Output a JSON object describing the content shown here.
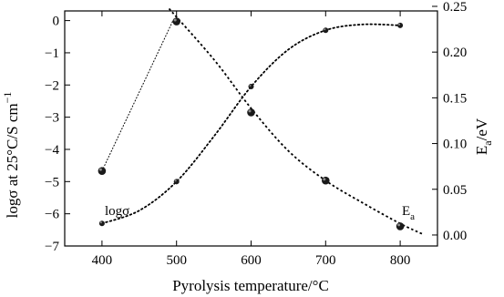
{
  "chart_data": {
    "type": "scatter",
    "title": "",
    "xlabel": "Pyrolysis temperature/°C",
    "ylabel_left": "logσ at 25°C/S cm",
    "ylabel_left_superscript": "−1",
    "ylabel_right_main": "E",
    "ylabel_right_sub": "a",
    "ylabel_right_unit": "/eV",
    "xlim": [
      350,
      850
    ],
    "ylim_left": [
      -7,
      0.3
    ],
    "ylim_right": [
      -0.012,
      0.245
    ],
    "x_ticks": [
      400,
      500,
      600,
      700,
      800
    ],
    "x_tick_labels": [
      "400",
      "500",
      "600",
      "700",
      "800"
    ],
    "y_left_ticks": [
      0,
      -1,
      -2,
      -3,
      -4,
      -5,
      -6,
      -7
    ],
    "y_left_tick_labels": [
      "0",
      "−1",
      "−2",
      "−3",
      "−4",
      "−5",
      "−6",
      "−7"
    ],
    "y_right_ticks": [
      0.0,
      0.05,
      0.1,
      0.15,
      0.2,
      0.25
    ],
    "y_right_tick_labels": [
      "0.00",
      "0.05",
      "0.10",
      "0.15",
      "0.20",
      "0.25"
    ],
    "series": [
      {
        "name": "logσ",
        "axis": "left",
        "marker": "small",
        "x": [
          400,
          500,
          600,
          700,
          800
        ],
        "y": [
          -6.3,
          -5.0,
          -2.05,
          -0.3,
          -0.15
        ],
        "fit": [
          [
            400,
            -6.3
          ],
          [
            450,
            -5.9
          ],
          [
            500,
            -5.0
          ],
          [
            550,
            -3.6
          ],
          [
            600,
            -2.05
          ],
          [
            650,
            -0.9
          ],
          [
            700,
            -0.3
          ],
          [
            750,
            -0.12
          ],
          [
            800,
            -0.15
          ]
        ]
      },
      {
        "name": "Ea",
        "axis": "right",
        "marker": "large",
        "x": [
          400,
          500,
          600,
          700,
          800
        ],
        "y": [
          0.07,
          0.2335,
          0.134,
          0.0595,
          0.0095
        ],
        "fit_rise": [
          [
            400,
            0.07
          ],
          [
            495,
            0.234
          ]
        ],
        "fit_fall": [
          [
            490,
            0.2475
          ],
          [
            550,
            0.192
          ],
          [
            600,
            0.1385
          ],
          [
            650,
            0.092
          ],
          [
            700,
            0.0595
          ],
          [
            750,
            0.035
          ],
          [
            800,
            0.0125
          ],
          [
            830,
            0.001
          ]
        ]
      }
    ],
    "annotations": [
      {
        "text": "logσ",
        "x": 400,
        "y_left": -5.8
      },
      {
        "main": "E",
        "sub": "a",
        "x": 800,
        "y_right": 0.022
      }
    ]
  }
}
